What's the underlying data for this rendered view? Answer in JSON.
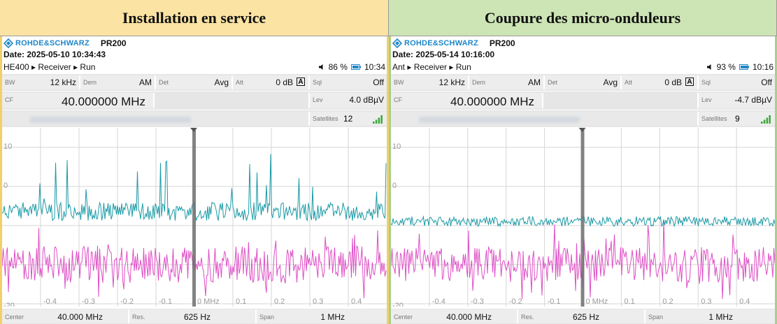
{
  "panels": [
    {
      "header": "Installation en service",
      "brand": "ROHDE&SCHWARZ",
      "model": "PR200",
      "date": "Date: 2025-05-10 10:34:43",
      "path": "HE400 ▸ Receiver ▸ Run",
      "volume_icon": "speaker-icon",
      "battery": "86 %",
      "time": "10:34",
      "bw_label": "BW",
      "bw": "12 kHz",
      "dem_label": "Dem",
      "dem": "AM",
      "det_label": "Det",
      "det": "Avg",
      "att_label": "Att",
      "att": "0 dB",
      "att_mode": "A",
      "sql_label": "Sql",
      "sql": "Off",
      "cf_label": "CF",
      "cf": "40.000000 MHz",
      "lev_label": "Lev",
      "lev": "4.0 dBµV",
      "sat_label": "Satellites",
      "sat": "12",
      "center_label": "Center",
      "center": "40.000 MHz",
      "res_label": "Res.",
      "res": "625 Hz",
      "span_label": "Span",
      "span": "1 MHz",
      "y_ticks": [
        "10",
        "0",
        "-20"
      ],
      "x_ticks": [
        "-0.4",
        "-0.3",
        "-0.2",
        "-0.1",
        "0 MHz",
        "0.1",
        "0.2",
        "0.3",
        "0.4"
      ],
      "trace_colors": {
        "upper": "#1a9aa6",
        "lower": "#de4ec5"
      }
    },
    {
      "header": "Coupure des micro-onduleurs",
      "brand": "ROHDE&SCHWARZ",
      "model": "PR200",
      "date": "Date: 2025-05-14 10:16:00",
      "path": "Ant ▸ Receiver ▸ Run",
      "volume_icon": "speaker-icon",
      "battery": "93 %",
      "time": "10:16",
      "bw_label": "BW",
      "bw": "12 kHz",
      "dem_label": "Dem",
      "dem": "AM",
      "det_label": "Det",
      "det": "Avg",
      "att_label": "Att",
      "att": "0 dB",
      "att_mode": "A",
      "sql_label": "Sql",
      "sql": "Off",
      "cf_label": "CF",
      "cf": "40.000000 MHz",
      "lev_label": "Lev",
      "lev": "-4.7 dBµV",
      "sat_label": "Satellites",
      "sat": "9",
      "center_label": "Center",
      "center": "40.000 MHz",
      "res_label": "Res.",
      "res": "625 Hz",
      "span_label": "Span",
      "span": "1 MHz",
      "y_ticks": [
        "10",
        "0",
        "-20"
      ],
      "x_ticks": [
        "-0.4",
        "-0.3",
        "-0.2",
        "-0.1",
        "0 MHz",
        "0.1",
        "0.2",
        "0.3",
        "0.4"
      ],
      "trace_colors": {
        "upper": "#1a9aa6",
        "lower": "#de4ec5"
      }
    }
  ]
}
